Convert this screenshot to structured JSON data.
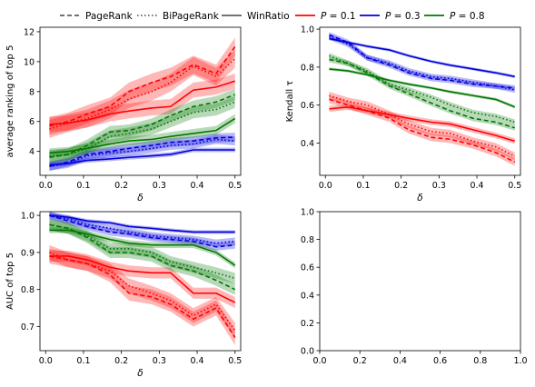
{
  "legend": {
    "entries": [
      {
        "label": "PageRank",
        "style": "dashed",
        "color": "#444444"
      },
      {
        "label": "BiPageRank",
        "style": "dotted",
        "color": "#444444"
      },
      {
        "label": "WinRatio",
        "style": "solid",
        "color": "#444444"
      },
      {
        "label": "P = 0.1",
        "p": "P",
        "eq": " = 0.1",
        "style": "solid",
        "color": "#ff0000"
      },
      {
        "label": "P = 0.3",
        "p": "P",
        "eq": " = 0.3",
        "style": "solid",
        "color": "#0000dd"
      },
      {
        "label": "P = 0.8",
        "p": "P",
        "eq": " = 0.8",
        "style": "solid",
        "color": "#007700"
      }
    ]
  },
  "chart_data": [
    {
      "type": "line",
      "ylabel": "average ranking of top 5",
      "xlabel": "δ",
      "xlim": [
        -0.015,
        0.515
      ],
      "ylim": [
        2.4,
        12.3
      ],
      "xticks": [
        0.0,
        0.1,
        0.2,
        0.3,
        0.4,
        0.5
      ],
      "xtick_labels": [
        "0.0",
        "0.1",
        "0.2",
        "0.3",
        "0.4",
        "0.5"
      ],
      "yticks": [
        4,
        6,
        8,
        10,
        12
      ],
      "ytick_labels": [
        "4",
        "6",
        "8",
        "10",
        "12"
      ],
      "x": [
        0.01,
        0.06,
        0.11,
        0.17,
        0.22,
        0.28,
        0.33,
        0.39,
        0.45,
        0.5
      ],
      "series": [
        {
          "method": "PageRank",
          "p": 0.1,
          "color": "#ff0000",
          "style": "dashed",
          "band": 0.6,
          "values": [
            5.7,
            6.0,
            6.5,
            7.0,
            8.0,
            8.6,
            9.0,
            9.8,
            9.2,
            11.0
          ]
        },
        {
          "method": "BiPageRank",
          "p": 0.1,
          "color": "#ff0000",
          "style": "dotted",
          "band": 0.6,
          "values": [
            5.5,
            5.9,
            6.2,
            6.8,
            7.5,
            8.0,
            8.6,
            9.7,
            9.0,
            10.2
          ]
        },
        {
          "method": "WinRatio",
          "p": 0.1,
          "color": "#ff0000",
          "style": "solid",
          "band": 0.5,
          "values": [
            5.8,
            5.9,
            6.1,
            6.5,
            6.7,
            6.9,
            7.0,
            8.1,
            8.3,
            8.7
          ]
        },
        {
          "method": "PageRank",
          "p": 0.3,
          "color": "#0000dd",
          "style": "dashed",
          "band": 0.3,
          "values": [
            3.0,
            3.3,
            3.8,
            4.0,
            4.2,
            4.4,
            4.6,
            4.7,
            4.9,
            4.95
          ]
        },
        {
          "method": "BiPageRank",
          "p": 0.3,
          "color": "#0000dd",
          "style": "dotted",
          "band": 0.3,
          "values": [
            3.0,
            3.2,
            3.7,
            3.9,
            4.0,
            4.2,
            4.4,
            4.5,
            4.8,
            4.7
          ]
        },
        {
          "method": "WinRatio",
          "p": 0.3,
          "color": "#0000dd",
          "style": "solid",
          "band": 0.15,
          "values": [
            3.1,
            3.2,
            3.4,
            3.5,
            3.6,
            3.7,
            3.8,
            4.1,
            4.1,
            4.1
          ]
        },
        {
          "method": "PageRank",
          "p": 0.8,
          "color": "#007700",
          "style": "dashed",
          "band": 0.4,
          "values": [
            3.6,
            3.8,
            4.4,
            5.3,
            5.4,
            5.8,
            6.4,
            7.0,
            7.3,
            7.8
          ]
        },
        {
          "method": "BiPageRank",
          "p": 0.8,
          "color": "#007700",
          "style": "dotted",
          "band": 0.4,
          "values": [
            3.7,
            3.8,
            4.2,
            5.0,
            5.2,
            5.5,
            6.0,
            6.6,
            6.8,
            7.3
          ]
        },
        {
          "method": "WinRatio",
          "p": 0.8,
          "color": "#007700",
          "style": "solid",
          "band": 0.3,
          "values": [
            3.9,
            4.0,
            4.2,
            4.5,
            4.7,
            4.8,
            5.0,
            5.2,
            5.4,
            6.2
          ]
        }
      ]
    },
    {
      "type": "line",
      "ylabel": "Kendall τ",
      "xlabel": "δ",
      "xlim": [
        -0.015,
        0.515
      ],
      "ylim": [
        0.23,
        1.01
      ],
      "xticks": [
        0.0,
        0.1,
        0.2,
        0.3,
        0.4,
        0.5
      ],
      "xtick_labels": [
        "0.0",
        "0.1",
        "0.2",
        "0.3",
        "0.4",
        "0.5"
      ],
      "yticks": [
        0.4,
        0.6,
        0.8,
        1.0
      ],
      "ytick_labels": [
        "0.4",
        "0.6",
        "0.8",
        "1.0"
      ],
      "x": [
        0.01,
        0.06,
        0.11,
        0.17,
        0.22,
        0.28,
        0.33,
        0.39,
        0.45,
        0.5
      ],
      "series": [
        {
          "method": "PageRank",
          "p": 0.1,
          "color": "#ff0000",
          "style": "dashed",
          "band": 0.02,
          "values": [
            0.63,
            0.6,
            0.57,
            0.53,
            0.47,
            0.43,
            0.42,
            0.39,
            0.35,
            0.3
          ]
        },
        {
          "method": "BiPageRank",
          "p": 0.1,
          "color": "#ff0000",
          "style": "dotted",
          "band": 0.02,
          "values": [
            0.65,
            0.62,
            0.6,
            0.55,
            0.5,
            0.46,
            0.45,
            0.41,
            0.38,
            0.33
          ]
        },
        {
          "method": "WinRatio",
          "p": 0.1,
          "color": "#ff0000",
          "style": "solid",
          "band": 0.015,
          "values": [
            0.58,
            0.59,
            0.57,
            0.55,
            0.53,
            0.51,
            0.5,
            0.47,
            0.44,
            0.41
          ]
        },
        {
          "method": "PageRank",
          "p": 0.3,
          "color": "#0000dd",
          "style": "dashed",
          "band": 0.015,
          "values": [
            0.97,
            0.93,
            0.85,
            0.81,
            0.77,
            0.74,
            0.73,
            0.71,
            0.7,
            0.69
          ]
        },
        {
          "method": "BiPageRank",
          "p": 0.3,
          "color": "#0000dd",
          "style": "dotted",
          "band": 0.015,
          "values": [
            0.96,
            0.92,
            0.85,
            0.82,
            0.78,
            0.75,
            0.74,
            0.72,
            0.7,
            0.68
          ]
        },
        {
          "method": "WinRatio",
          "p": 0.3,
          "color": "#0000dd",
          "style": "solid",
          "band": 0.008,
          "values": [
            0.95,
            0.93,
            0.91,
            0.89,
            0.86,
            0.83,
            0.81,
            0.79,
            0.77,
            0.75
          ]
        },
        {
          "method": "PageRank",
          "p": 0.8,
          "color": "#007700",
          "style": "dashed",
          "band": 0.015,
          "values": [
            0.84,
            0.82,
            0.77,
            0.7,
            0.66,
            0.61,
            0.57,
            0.53,
            0.51,
            0.48
          ]
        },
        {
          "method": "BiPageRank",
          "p": 0.8,
          "color": "#007700",
          "style": "dotted",
          "band": 0.015,
          "values": [
            0.86,
            0.82,
            0.78,
            0.71,
            0.68,
            0.64,
            0.6,
            0.56,
            0.54,
            0.51
          ]
        },
        {
          "method": "WinRatio",
          "p": 0.8,
          "color": "#007700",
          "style": "solid",
          "band": 0.008,
          "values": [
            0.79,
            0.78,
            0.76,
            0.73,
            0.71,
            0.69,
            0.67,
            0.65,
            0.63,
            0.59
          ]
        }
      ]
    },
    {
      "type": "line",
      "ylabel": "AUC of top 5",
      "xlabel": "δ",
      "xlim": [
        -0.015,
        0.515
      ],
      "ylim": [
        0.635,
        1.01
      ],
      "xticks": [
        0.0,
        0.1,
        0.2,
        0.3,
        0.4,
        0.5
      ],
      "xtick_labels": [
        "0.0",
        "0.1",
        "0.2",
        "0.3",
        "0.4",
        "0.5"
      ],
      "yticks": [
        0.7,
        0.8,
        0.9,
        1.0
      ],
      "ytick_labels": [
        "0.7",
        "0.8",
        "0.9",
        "1.0"
      ],
      "x": [
        0.01,
        0.06,
        0.11,
        0.17,
        0.22,
        0.28,
        0.33,
        0.39,
        0.45,
        0.5
      ],
      "series": [
        {
          "method": "PageRank",
          "p": 0.1,
          "color": "#ff0000",
          "style": "dashed",
          "band": 0.02,
          "values": [
            0.89,
            0.88,
            0.87,
            0.84,
            0.79,
            0.78,
            0.76,
            0.72,
            0.75,
            0.67
          ]
        },
        {
          "method": "BiPageRank",
          "p": 0.1,
          "color": "#ff0000",
          "style": "dotted",
          "band": 0.02,
          "values": [
            0.9,
            0.88,
            0.87,
            0.85,
            0.81,
            0.79,
            0.77,
            0.73,
            0.76,
            0.69
          ]
        },
        {
          "method": "WinRatio",
          "p": 0.1,
          "color": "#ff0000",
          "style": "solid",
          "band": 0.015,
          "values": [
            0.89,
            0.89,
            0.88,
            0.86,
            0.85,
            0.845,
            0.845,
            0.79,
            0.79,
            0.765
          ]
        },
        {
          "method": "PageRank",
          "p": 0.3,
          "color": "#0000dd",
          "style": "dashed",
          "band": 0.01,
          "values": [
            1.0,
            0.985,
            0.97,
            0.955,
            0.95,
            0.94,
            0.935,
            0.93,
            0.915,
            0.92
          ]
        },
        {
          "method": "BiPageRank",
          "p": 0.3,
          "color": "#0000dd",
          "style": "dotted",
          "band": 0.01,
          "values": [
            1.0,
            0.99,
            0.975,
            0.965,
            0.955,
            0.945,
            0.94,
            0.935,
            0.925,
            0.93
          ]
        },
        {
          "method": "WinRatio",
          "p": 0.3,
          "color": "#0000dd",
          "style": "solid",
          "band": 0.005,
          "values": [
            1.0,
            0.995,
            0.985,
            0.98,
            0.97,
            0.965,
            0.96,
            0.955,
            0.955,
            0.955
          ]
        },
        {
          "method": "PageRank",
          "p": 0.8,
          "color": "#007700",
          "style": "dashed",
          "band": 0.015,
          "values": [
            0.975,
            0.965,
            0.94,
            0.9,
            0.9,
            0.89,
            0.865,
            0.85,
            0.825,
            0.8
          ]
        },
        {
          "method": "BiPageRank",
          "p": 0.8,
          "color": "#007700",
          "style": "dotted",
          "band": 0.015,
          "values": [
            0.975,
            0.965,
            0.945,
            0.91,
            0.91,
            0.9,
            0.875,
            0.86,
            0.845,
            0.83
          ]
        },
        {
          "method": "WinRatio",
          "p": 0.8,
          "color": "#007700",
          "style": "solid",
          "band": 0.008,
          "values": [
            0.96,
            0.96,
            0.95,
            0.935,
            0.925,
            0.92,
            0.92,
            0.92,
            0.9,
            0.865
          ]
        }
      ]
    },
    {
      "type": "line",
      "ylabel": "",
      "xlabel": "",
      "xlim": [
        0.0,
        1.0
      ],
      "ylim": [
        0.0,
        1.0
      ],
      "xticks": [
        0.0,
        0.2,
        0.4,
        0.6,
        0.8,
        1.0
      ],
      "xtick_labels": [
        "0.0",
        "0.2",
        "0.4",
        "0.6",
        "0.8",
        "1.0"
      ],
      "yticks": [
        0.0,
        0.2,
        0.4,
        0.6,
        0.8,
        1.0
      ],
      "ytick_labels": [
        "0.0",
        "0.2",
        "0.4",
        "0.6",
        "0.8",
        "1.0"
      ],
      "x": [],
      "series": []
    }
  ]
}
